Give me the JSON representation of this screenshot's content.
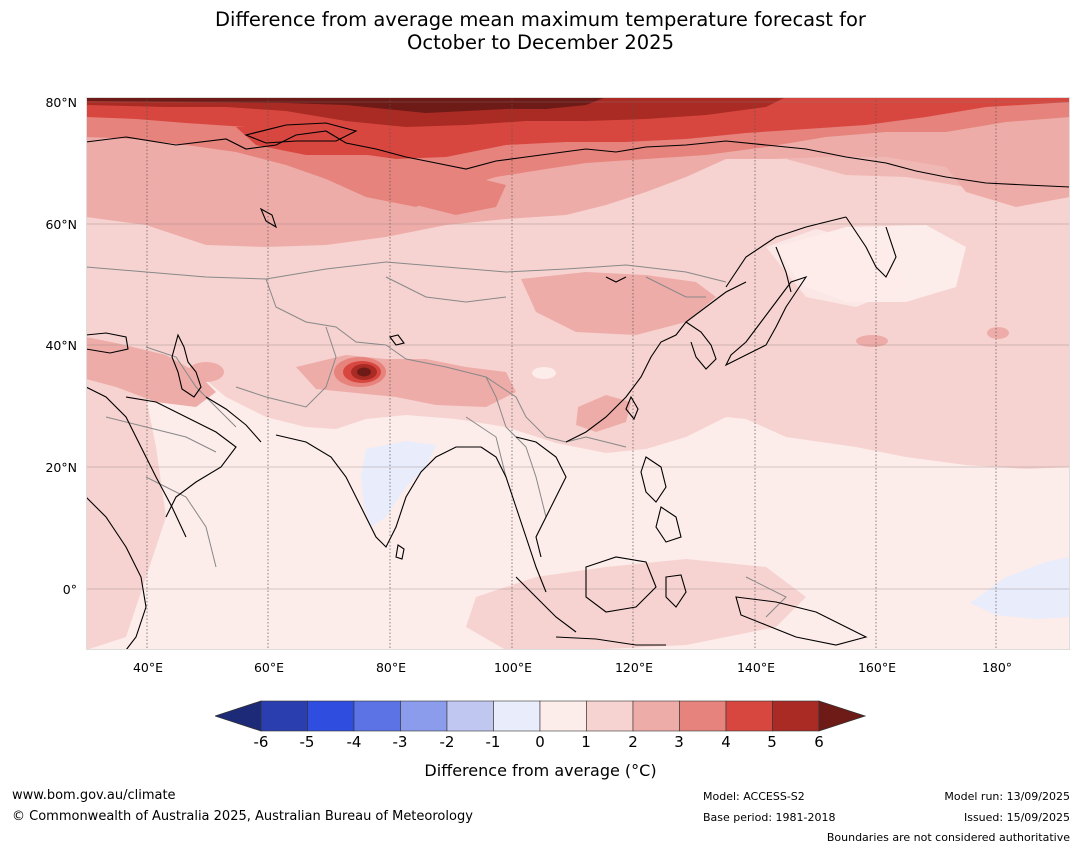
{
  "title": {
    "line1": "Difference from average mean maximum temperature forecast for",
    "line2": "October to December 2025"
  },
  "axes": {
    "lat_labels": [
      "80°N",
      "60°N",
      "40°N",
      "20°N",
      "0°"
    ],
    "lon_labels": [
      "40°E",
      "60°E",
      "80°E",
      "100°E",
      "120°E",
      "140°E",
      "160°E",
      "180°"
    ]
  },
  "colorbar": {
    "ticks": [
      "-6",
      "-5",
      "-4",
      "-3",
      "-2",
      "-1",
      "0",
      "1",
      "2",
      "3",
      "4",
      "5",
      "6"
    ],
    "label": "Difference from average (°C)",
    "colors": [
      "#1c2a78",
      "#2a3eb0",
      "#2f4ddf",
      "#5b73e4",
      "#8a9ceb",
      "#c0c8f2",
      "#e8ecfb",
      "#fcecea",
      "#f6d3d0",
      "#eeaca8",
      "#e6837d",
      "#d8473f",
      "#a92b24",
      "#6e1a16"
    ]
  },
  "colors": {
    "land_base": "#fcecea",
    "warm_1": "#f6d3d0",
    "warm_2": "#eeaca8",
    "warm_3": "#e6837d",
    "warm_4": "#d8473f",
    "warm_5": "#a92b24",
    "warm_6": "#6e1a16",
    "cool_1": "#e8ecfb"
  },
  "footer": {
    "website": "www.bom.gov.au/climate",
    "copyright": "© Commonwealth of Australia 2025, Australian Bureau of Meteorology",
    "model": "Model: ACCESS-S2",
    "base_period": "Base period: 1981-2018",
    "model_run": "Model run: 13/09/2025",
    "issued": "Issued: 15/09/2025",
    "disclaimer": "Boundaries are not considered authoritative"
  }
}
